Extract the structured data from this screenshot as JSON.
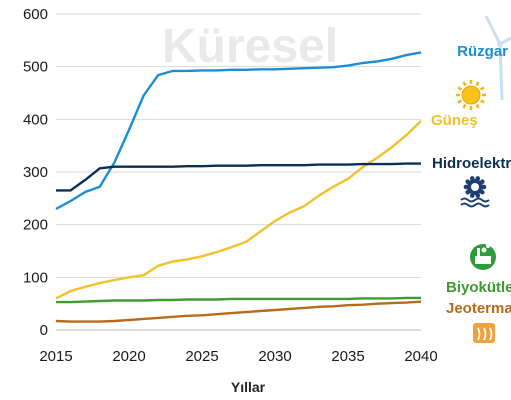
{
  "watermark": "Küresel",
  "chart_data": {
    "type": "line",
    "xlabel": "Yıllar",
    "ylabel": "",
    "xlim": [
      2015,
      2040
    ],
    "ylim": [
      0,
      600
    ],
    "xticks": [
      2015,
      2020,
      2025,
      2030,
      2035,
      2040
    ],
    "yticks": [
      0,
      100,
      200,
      300,
      400,
      500,
      600
    ],
    "grid": "horizontal",
    "legend_placement": "right",
    "x": [
      2015,
      2016,
      2017,
      2018,
      2019,
      2020,
      2021,
      2022,
      2023,
      2024,
      2025,
      2026,
      2027,
      2028,
      2029,
      2030,
      2031,
      2032,
      2033,
      2034,
      2035,
      2036,
      2037,
      2038,
      2039,
      2040
    ],
    "series": [
      {
        "name": "Rüzgar",
        "color": "#1b8fd3",
        "icon": "wind-turbine-icon",
        "values": [
          230,
          245,
          262,
          272,
          318,
          380,
          445,
          484,
          492,
          492,
          493,
          493,
          494,
          494,
          495,
          495,
          496,
          497,
          498,
          499,
          502,
          507,
          510,
          515,
          522,
          527
        ]
      },
      {
        "name": "Güneş",
        "color": "#f2c12e",
        "icon": "sun-icon",
        "values": [
          60,
          74,
          82,
          89,
          95,
          100,
          104,
          122,
          130,
          134,
          140,
          148,
          157,
          167,
          187,
          207,
          223,
          235,
          255,
          272,
          287,
          309,
          327,
          347,
          370,
          397
        ]
      },
      {
        "name": "Hidroelektrik",
        "color": "#0d2f55",
        "icon": "hydro-turbine-icon",
        "values": [
          265,
          265,
          285,
          307,
          310,
          310,
          310,
          310,
          310,
          311,
          311,
          312,
          312,
          312,
          313,
          313,
          313,
          313,
          314,
          314,
          314,
          315,
          315,
          315,
          316,
          316
        ]
      },
      {
        "name": "Biyokütle",
        "color": "#3e9b2f",
        "icon": "biomass-factory-icon",
        "values": [
          53,
          53,
          54,
          55,
          56,
          56,
          56,
          57,
          57,
          58,
          58,
          58,
          59,
          59,
          59,
          59,
          59,
          59,
          59,
          59,
          59,
          60,
          60,
          60,
          61,
          61
        ]
      },
      {
        "name": "Jeotermal",
        "color": "#b86a1c",
        "icon": "geothermal-icon",
        "values": [
          17,
          16,
          16,
          16,
          17,
          19,
          21,
          23,
          25,
          27,
          28,
          30,
          32,
          34,
          36,
          38,
          40,
          42,
          44,
          45,
          47,
          48,
          50,
          51,
          52,
          54
        ]
      }
    ]
  }
}
